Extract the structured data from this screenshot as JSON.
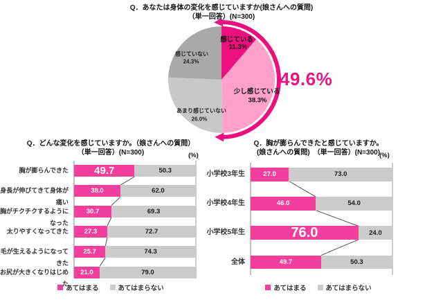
{
  "colors": {
    "pink_dark": "#ec0f7e",
    "pink_bar": "#f23e9c",
    "pink_light": "#ffa1ca",
    "gray_bar": "#cbcbcb",
    "gray_pie_light": "#c8c8c8",
    "gray_pie_dark": "#a9a9a9",
    "callout_pink": "#e6177f"
  },
  "chart_data": [
    {
      "type": "pie",
      "title": "Q．あなたは身体の変化を感じていますか(娘さんへの質問)",
      "subtitle": "（単一回答）(N=300)",
      "labels": [
        "感じている",
        "少し感じている",
        "あまり感じていない",
        "感じていない"
      ],
      "values": [
        11.3,
        38.3,
        26.0,
        24.3
      ],
      "value_labels": [
        "11.3%",
        "38.3%",
        "26.0%",
        "24.3%"
      ],
      "colors": [
        "#ec0f7e",
        "#ffa1ca",
        "#c8c8c8",
        "#a9a9a9"
      ],
      "start_angle_deg": 0,
      "direction": "clockwise",
      "callout": {
        "text": "49.6%",
        "covers_slices": [
          "感じている",
          "少し感じている"
        ],
        "span_percent": 49.6
      }
    },
    {
      "type": "bar",
      "orientation": "horizontal-stacked",
      "title": "Q．どんな変化を感じていますか。（娘さんへの質問）",
      "subtitle": "（単一回答）(N=300)",
      "unit_label": "(%)",
      "categories": [
        "胸が膨らんできた",
        "身長が伸びてきて身体が痛い",
        "胸がチクチクするようになった",
        "太りやすくなってきた",
        "毛が生えるようになってきた",
        "お尻が大きくなりはじめた"
      ],
      "series": [
        {
          "name": "あてはまる",
          "color": "#f23e9c",
          "values": [
            49.7,
            38.0,
            30.7,
            27.3,
            25.7,
            21.0
          ]
        },
        {
          "name": "あてはまらない",
          "color": "#cbcbcb",
          "values": [
            50.3,
            62.0,
            69.3,
            72.7,
            74.3,
            79.0
          ]
        }
      ],
      "xlim": [
        0,
        100
      ],
      "emphasized_row": 0,
      "legend": [
        "あてはまる",
        "あてはまらない"
      ],
      "legend_position": "bottom"
    },
    {
      "type": "bar",
      "orientation": "horizontal-stacked",
      "title": "Q．胸が膨らんできたと感じていますか。",
      "subtitle": "(娘さんへの質問)　（単一回答）(N=300)",
      "unit_label": "(%)",
      "categories": [
        "小学校3年生",
        "小学校4年生",
        "小学校5年生",
        "全体"
      ],
      "series": [
        {
          "name": "あてはまる",
          "color": "#f23e9c",
          "values": [
            27.0,
            46.0,
            76.0,
            49.7
          ]
        },
        {
          "name": "あてはまらない",
          "color": "#cbcbcb",
          "values": [
            73.0,
            54.0,
            24.0,
            50.3
          ]
        }
      ],
      "xlim": [
        0,
        100
      ],
      "emphasized_row": 2,
      "legend": [
        "あてはまる",
        "あてはまらない"
      ],
      "legend_position": "bottom"
    }
  ]
}
